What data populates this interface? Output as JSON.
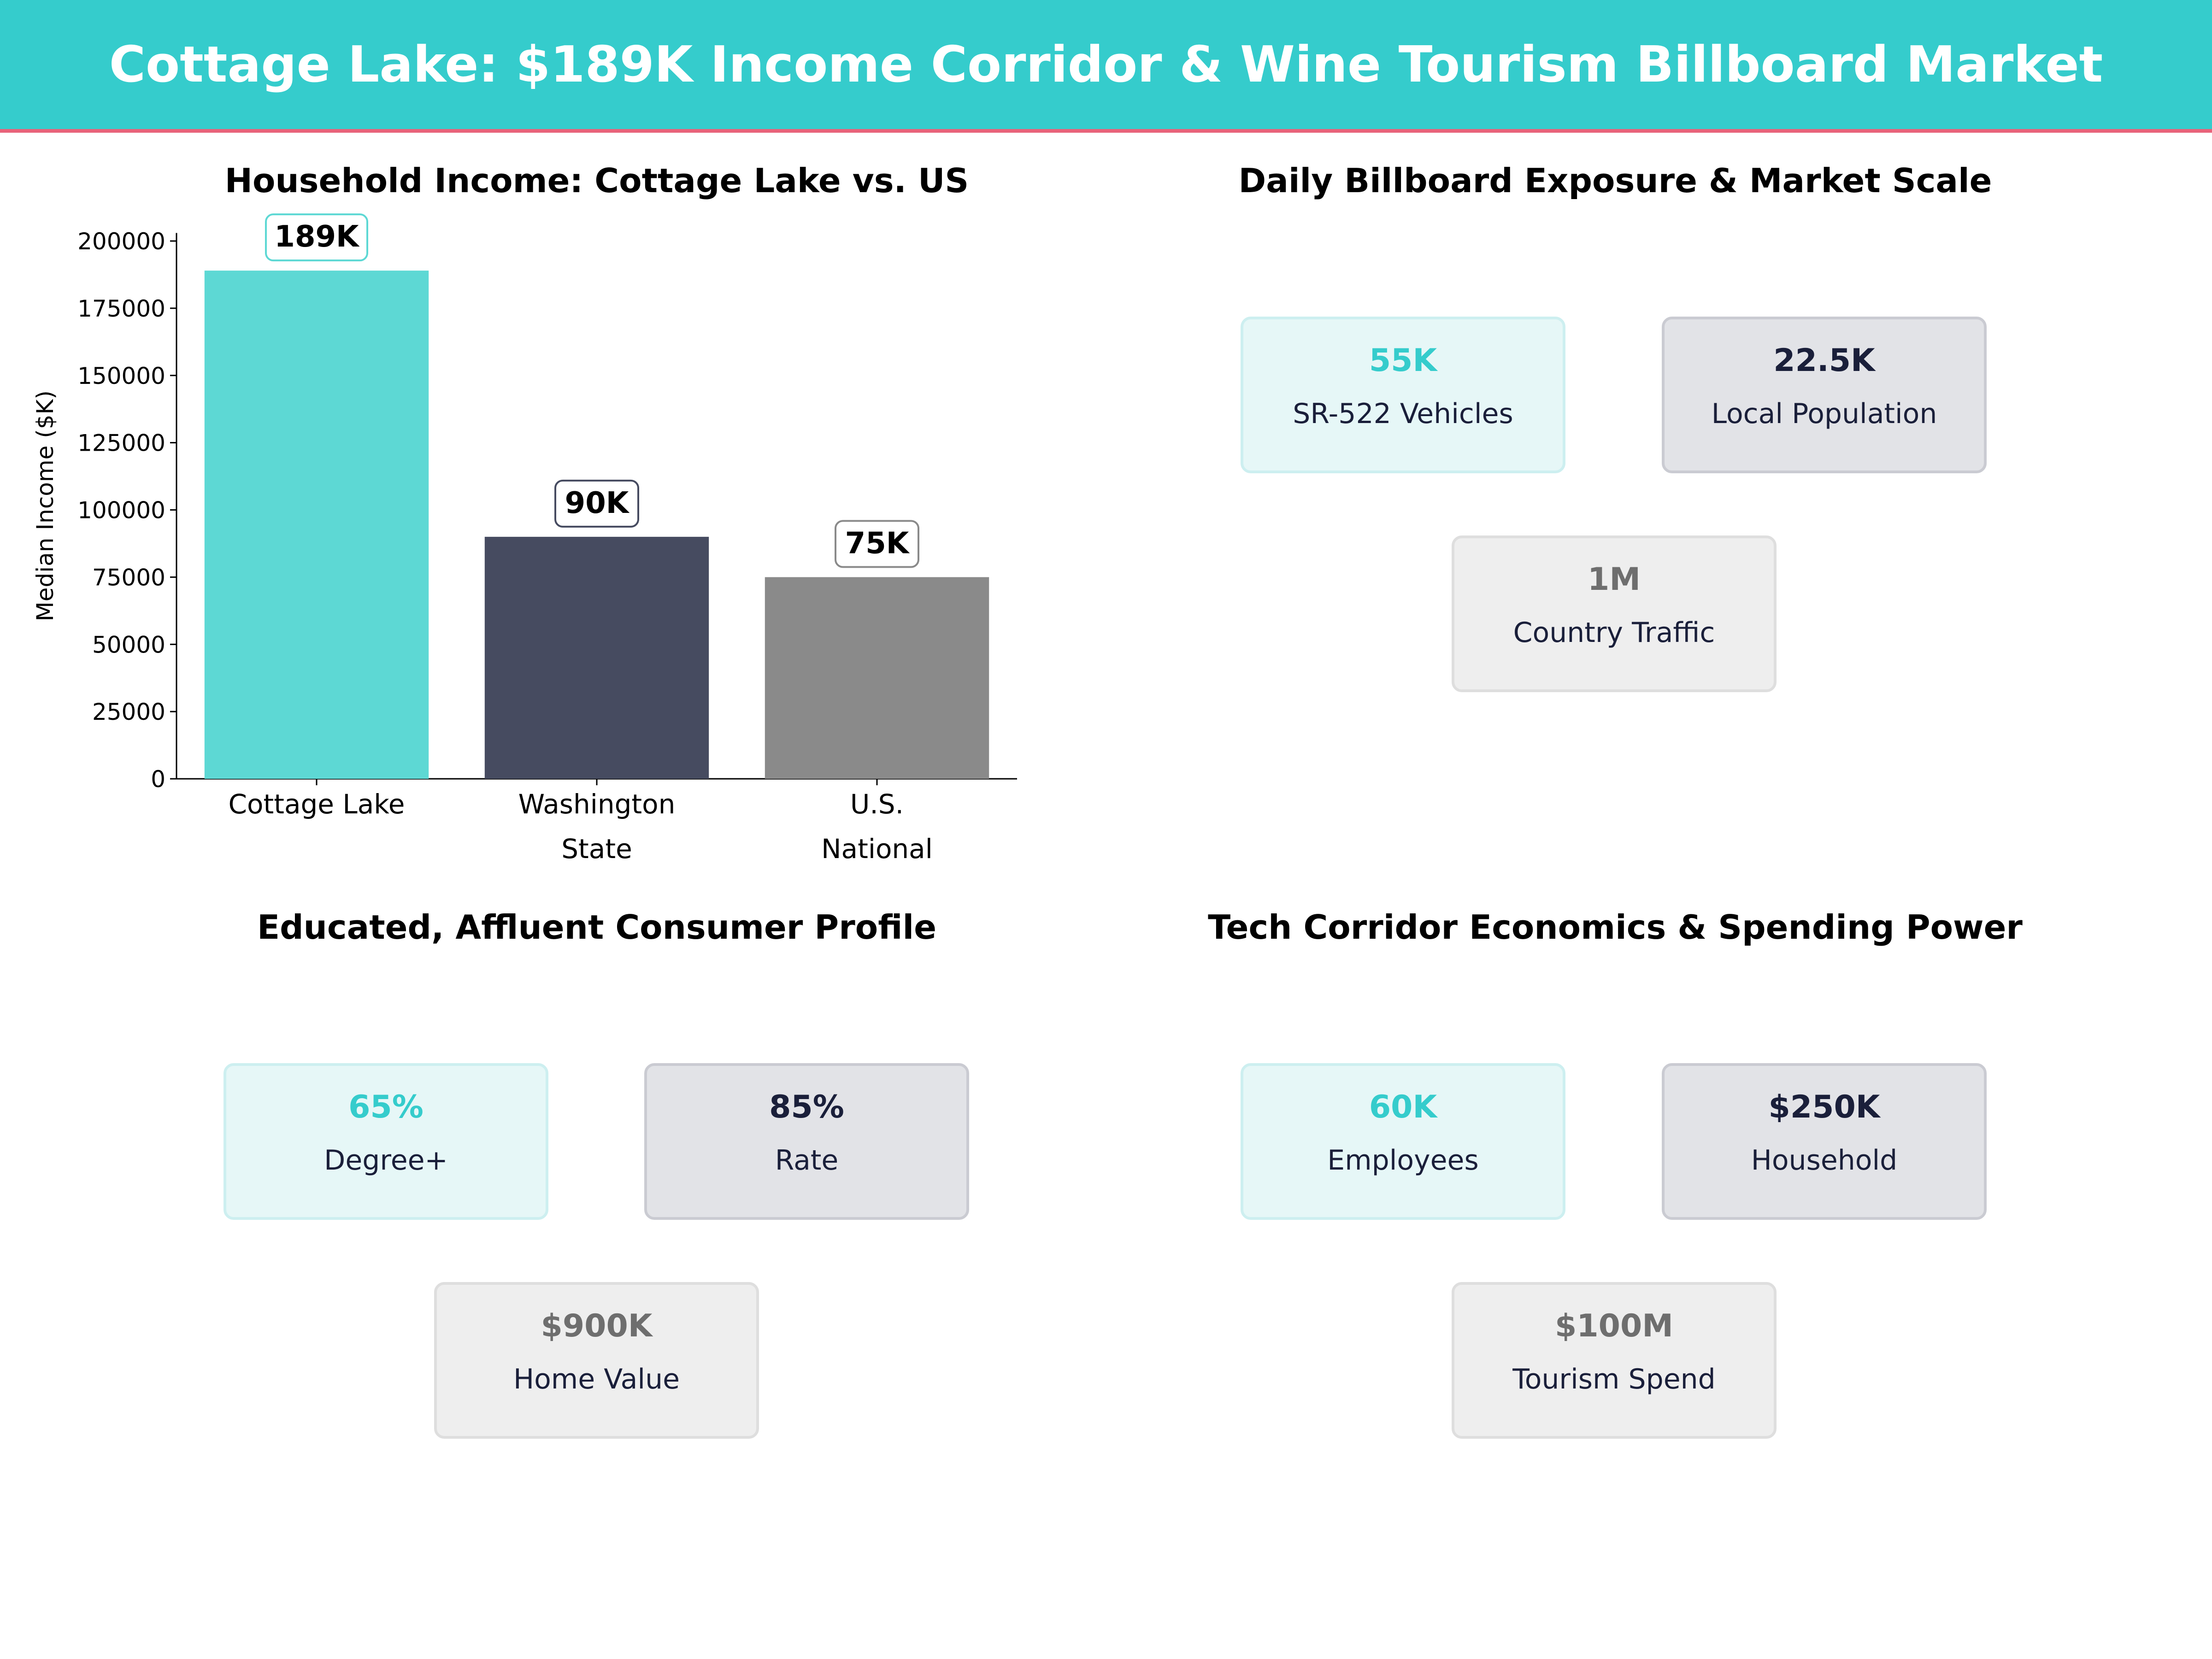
{
  "header": {
    "title": "Cottage Lake: $189K Income Corridor & Wine Tourism Billboard Market"
  },
  "colors": {
    "header_bg": "#35cccc",
    "accent_line": "#e8637a",
    "teal": "#5dd8d4",
    "navy": "#464b60",
    "gray": "#8a8a8a"
  },
  "chart_data": {
    "type": "bar",
    "title": "Household Income: Cottage Lake vs. US",
    "xlabel": "",
    "ylabel": "Median Income ($K)",
    "categories": [
      "Cottage Lake",
      "Washington\nState",
      "U.S.\nNational"
    ],
    "values": [
      189000,
      90000,
      75000
    ],
    "data_labels": [
      "189K",
      "90K",
      "75K"
    ],
    "bar_colors": [
      "#5dd8d4",
      "#464b60",
      "#8a8a8a"
    ],
    "label_border_colors": [
      "#5dd8d4",
      "#464b60",
      "#8a8a8a"
    ],
    "ylim": [
      0,
      203000
    ],
    "yticks": [
      0,
      25000,
      50000,
      75000,
      100000,
      125000,
      150000,
      175000,
      200000
    ],
    "grid": false
  },
  "panels": [
    {
      "title": "Daily Billboard Exposure & Market Scale",
      "cards": [
        {
          "value": "55K",
          "label": "SR-522 Vehicles"
        },
        {
          "value": "22.5K",
          "label": "Local Population"
        },
        {
          "value": "1M",
          "label": "Country Traffic"
        }
      ]
    },
    {
      "title": "Educated, Affluent Consumer Profile",
      "cards": [
        {
          "value": "65%",
          "label": "Degree+"
        },
        {
          "value": "85%",
          "label": "Rate"
        },
        {
          "value": "$900K",
          "label": "Home Value"
        }
      ]
    },
    {
      "title": "Tech Corridor Economics & Spending Power",
      "cards": [
        {
          "value": "60K",
          "label": "Employees"
        },
        {
          "value": "$250K",
          "label": "Household"
        },
        {
          "value": "$100M",
          "label": "Tourism Spend"
        }
      ]
    }
  ]
}
